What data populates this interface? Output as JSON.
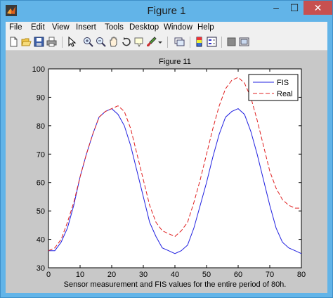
{
  "window": {
    "title": "Figure 1"
  },
  "controls": {
    "minimize": "–",
    "maximize": "☐",
    "close": "✕"
  },
  "menu": [
    "File",
    "Edit",
    "View",
    "Insert",
    "Tools",
    "Desktop",
    "Window",
    "Help"
  ],
  "toolbar_icons": [
    "new-figure-icon",
    "open-file-icon",
    "save-icon",
    "print-icon",
    "select-arrow-icon",
    "zoom-in-icon",
    "zoom-out-icon",
    "pan-hand-icon",
    "rotate-3d-icon",
    "data-cursor-icon",
    "brush-icon",
    "brush-dropdown-icon",
    "link-plot-icon",
    "insert-colorbar-icon",
    "insert-legend-icon",
    "hide-plot-tools-icon",
    "show-plot-tools-icon"
  ],
  "chart_data": {
    "type": "line",
    "title": "Figure 11",
    "xlabel": "Sensor measurement and FIS values for the entire period of 80h.",
    "ylabel": "",
    "xlim": [
      0,
      80
    ],
    "ylim": [
      30,
      100
    ],
    "xticks": [
      0,
      10,
      20,
      30,
      40,
      50,
      60,
      70,
      80
    ],
    "yticks": [
      30,
      40,
      50,
      60,
      70,
      80,
      90,
      100
    ],
    "grid": false,
    "legend_position": "top-right",
    "colors": {
      "FIS": "#2020e0",
      "Real": "#e02020"
    },
    "x": [
      0,
      2,
      4,
      6,
      8,
      10,
      12,
      14,
      16,
      18,
      20,
      22,
      24,
      26,
      28,
      30,
      32,
      34,
      36,
      38,
      40,
      42,
      44,
      46,
      48,
      50,
      52,
      54,
      56,
      58,
      60,
      62,
      64,
      66,
      68,
      70,
      72,
      74,
      76,
      78,
      80
    ],
    "series": [
      {
        "name": "FIS",
        "style": "solid",
        "values": [
          36,
          36,
          39,
          44,
          52,
          62,
          70,
          77,
          83,
          85,
          86,
          84,
          80,
          73,
          64,
          55,
          46,
          41,
          37,
          36,
          35,
          36,
          38,
          44,
          52,
          60,
          69,
          77,
          83,
          85,
          86,
          84,
          78,
          70,
          61,
          52,
          44,
          39,
          37,
          36,
          35
        ]
      },
      {
        "name": "Real",
        "style": "dashed",
        "values": [
          36,
          37,
          40,
          46,
          53,
          62,
          70,
          77,
          83,
          85,
          86,
          87,
          85,
          79,
          70,
          61,
          52,
          46,
          43,
          42,
          41,
          43,
          46,
          53,
          61,
          70,
          79,
          87,
          93,
          96,
          97,
          95,
          90,
          82,
          73,
          64,
          58,
          54,
          52,
          51,
          51
        ]
      }
    ]
  }
}
